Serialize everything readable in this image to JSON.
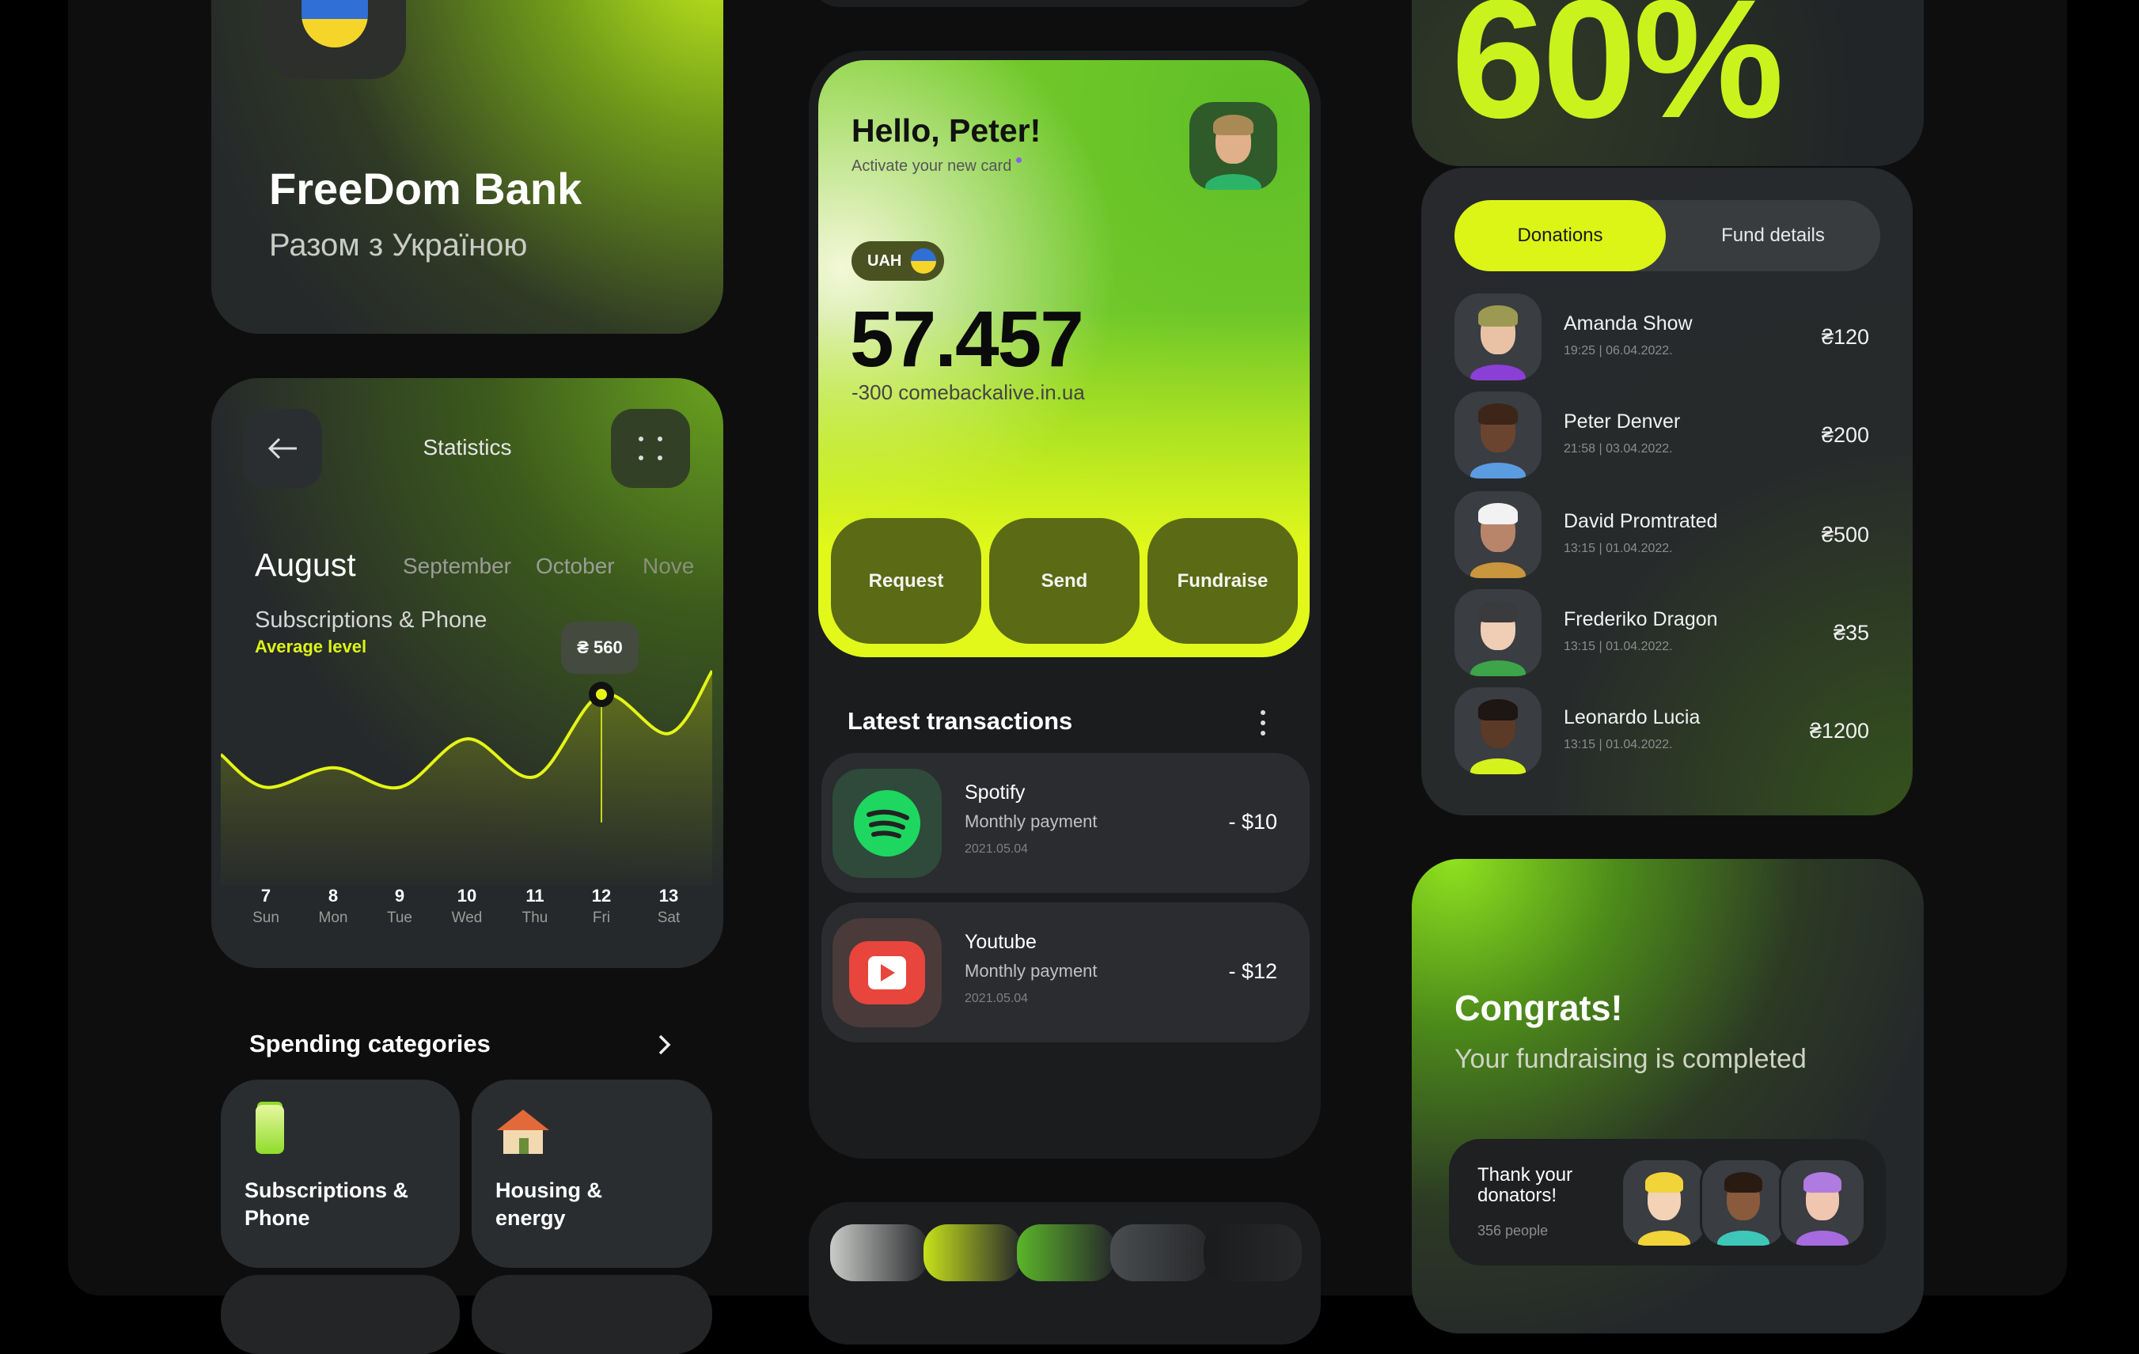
{
  "bank": {
    "title": "FreeDom Bank",
    "subtitle": "Разом з Україною"
  },
  "statistics": {
    "title": "Statistics",
    "months": [
      "August",
      "September",
      "October",
      "Nove"
    ],
    "active_month": "August",
    "category": "Subscriptions & Phone",
    "level": "Average level",
    "tooltip": "₴ 560",
    "days": [
      {
        "num": "7",
        "name": "Sun"
      },
      {
        "num": "8",
        "name": "Mon"
      },
      {
        "num": "9",
        "name": "Tue"
      },
      {
        "num": "10",
        "name": "Wed"
      },
      {
        "num": "11",
        "name": "Thu"
      },
      {
        "num": "12",
        "name": "Fri"
      },
      {
        "num": "13",
        "name": "Sat"
      }
    ]
  },
  "chart_data": {
    "type": "area",
    "categories": [
      "7",
      "8",
      "9",
      "10",
      "11",
      "12",
      "13"
    ],
    "values": [
      280,
      339,
      280,
      426,
      312,
      560,
      442
    ],
    "highlight_index": 5,
    "highlight_label": "₴ 560",
    "ylim": [
      0,
      600
    ],
    "grid": false,
    "line_color": "#e4f516"
  },
  "spending": {
    "title": "Spending categories",
    "categories": [
      {
        "label1": "Subscriptions &",
        "label2": "Phone",
        "icon": "battery-icon"
      },
      {
        "label1": "Housing &",
        "label2": "energy",
        "icon": "house-icon"
      }
    ]
  },
  "home": {
    "greeting": "Hello, Peter!",
    "subtext": "Activate your new card",
    "currency": "UAH",
    "balance": "57.457",
    "last_change": "-300 comebackalive.in.ua",
    "actions": [
      "Request",
      "Send",
      "Fundraise"
    ],
    "transactions_title": "Latest transactions",
    "transactions": [
      {
        "name": "Spotify",
        "type": "Monthly payment",
        "date": "2021.05.04",
        "amount": "- $10",
        "icon": "spotify-icon"
      },
      {
        "name": "Youtube",
        "type": "Monthly payment",
        "date": "2021.05.04",
        "amount": "- $12",
        "icon": "youtube-icon"
      }
    ],
    "nav": [
      "home-icon",
      "transfer-icon",
      "history-icon",
      "card-icon",
      "settings-icon"
    ]
  },
  "progress": {
    "label": "60%",
    "value": 60
  },
  "donations": {
    "tabs": [
      "Donations",
      "Fund details"
    ],
    "active_tab": "Donations",
    "items": [
      {
        "name": "Amanda Show",
        "date": "19:25 | 06.04.2022.",
        "amount": "₴120",
        "skin": "#e9c2a6",
        "hair": "#9c9a52",
        "shirt": "#8b3fd6"
      },
      {
        "name": "Peter Denver",
        "date": "21:58 | 03.04.2022.",
        "amount": "₴200",
        "skin": "#6b4430",
        "hair": "#3d2518",
        "shirt": "#5b9be0"
      },
      {
        "name": "David Promtrated",
        "date": "13:15 | 01.04.2022.",
        "amount": "₴500",
        "skin": "#b9856a",
        "hair": "#f2f2f2",
        "shirt": "#c9953d"
      },
      {
        "name": "Frederiko Dragon",
        "date": "13:15 | 01.04.2022.",
        "amount": "₴35",
        "skin": "#f0cdb5",
        "hair": "#3a3b3d",
        "shirt": "#3da44a"
      },
      {
        "name": "Leonardo Lucia",
        "date": "13:15 | 01.04.2022.",
        "amount": "₴1200",
        "skin": "#5c3a28",
        "hair": "#1d1612",
        "shirt": "#d6f21c"
      }
    ]
  },
  "congrats": {
    "title": "Congrats!",
    "subtitle": "Your fundraising is completed",
    "thanks1": "Thank your",
    "thanks2": "donators!",
    "people": "356 people",
    "avatars": [
      {
        "skin": "#f3d2b5",
        "hair": "#f1d33a",
        "shirt": "#f1d33a"
      },
      {
        "skin": "#8a5a3c",
        "hair": "#2a1b12",
        "shirt": "#3ec7b8"
      },
      {
        "skin": "#f0c6b0",
        "hair": "#b07be0",
        "shirt": "#a76be0"
      }
    ]
  },
  "colors": {
    "accent": "#dcf516",
    "bg": "#0e0e0f",
    "card": "#1c1d1f"
  },
  "swatches": [
    "#c9cbc8",
    "#c6e21a",
    "#5bb52a",
    "#4a4d50",
    "#1a1b1c"
  ]
}
